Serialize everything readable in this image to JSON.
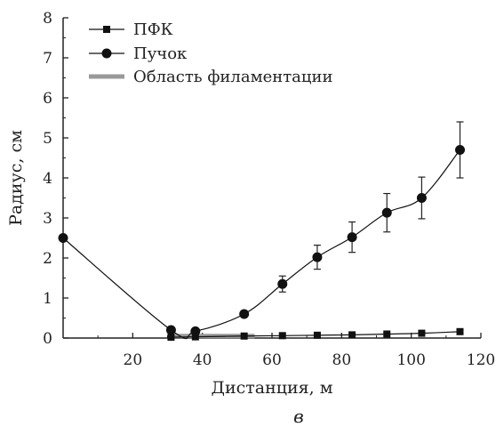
{
  "chart_data": {
    "type": "line",
    "xlabel": "Дистанция, м",
    "ylabel": "Радиус, см",
    "xlim": [
      0,
      120
    ],
    "ylim": [
      0,
      8
    ],
    "x_ticks": [
      20,
      40,
      60,
      80,
      100,
      120
    ],
    "y_ticks": [
      0,
      1,
      2,
      3,
      4,
      5,
      6,
      7,
      8
    ],
    "legend_position": "top-left",
    "panel_label": "в",
    "series": [
      {
        "name": "ПФК",
        "marker": "square",
        "color": "#111111",
        "x": [
          31,
          38,
          52,
          63,
          73,
          83,
          93,
          103,
          114
        ],
        "y": [
          0.02,
          0.03,
          0.05,
          0.06,
          0.07,
          0.08,
          0.1,
          0.12,
          0.16
        ]
      },
      {
        "name": "Пучок",
        "marker": "circle",
        "color": "#111111",
        "x": [
          0,
          31,
          38,
          52,
          63,
          73,
          83,
          93,
          103,
          114
        ],
        "y": [
          2.5,
          0.2,
          0.17,
          0.6,
          1.35,
          2.02,
          2.52,
          3.13,
          3.5,
          4.7
        ],
        "yerr": [
          0,
          0,
          0,
          0,
          0.2,
          0.3,
          0.38,
          0.48,
          0.52,
          0.7
        ]
      },
      {
        "name": "Область филаментации",
        "type": "span",
        "color": "#999999",
        "x": [
          30,
          55
        ],
        "y": 0.05
      }
    ]
  }
}
